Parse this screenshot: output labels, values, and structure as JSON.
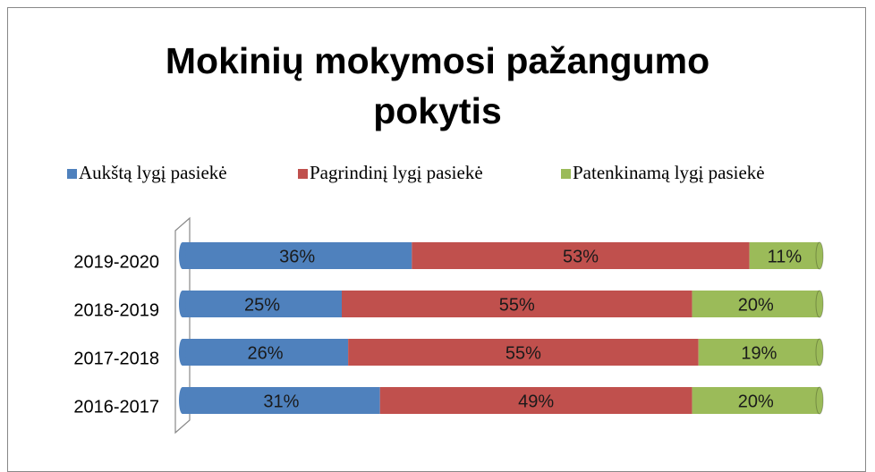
{
  "chart_data": {
    "type": "stacked_bar_horizontal",
    "title": "Mokinių mokymosi pažangumo pokytis",
    "categories": [
      "2019-2020",
      "2018-2019",
      "2017-2018",
      "2016-2017"
    ],
    "legend": "top",
    "series": [
      {
        "name": "Aukštą lygį pasiekė",
        "color": "#4f81bd",
        "values": [
          36,
          25,
          26,
          31
        ],
        "value_labels": [
          "36%",
          "25%",
          "26%",
          "31%"
        ]
      },
      {
        "name": "Pagrindinį lygį pasiekė",
        "color": "#c0504d",
        "values": [
          53,
          55,
          55,
          49
        ],
        "value_labels": [
          "53%",
          "55%",
          "55%",
          "49%"
        ]
      },
      {
        "name": "Patenkinamą lygį pasiekė",
        "color": "#9bbb59",
        "values": [
          11,
          20,
          19,
          20
        ],
        "value_labels": [
          "11%",
          "20%",
          "19%",
          "20%"
        ]
      }
    ]
  }
}
